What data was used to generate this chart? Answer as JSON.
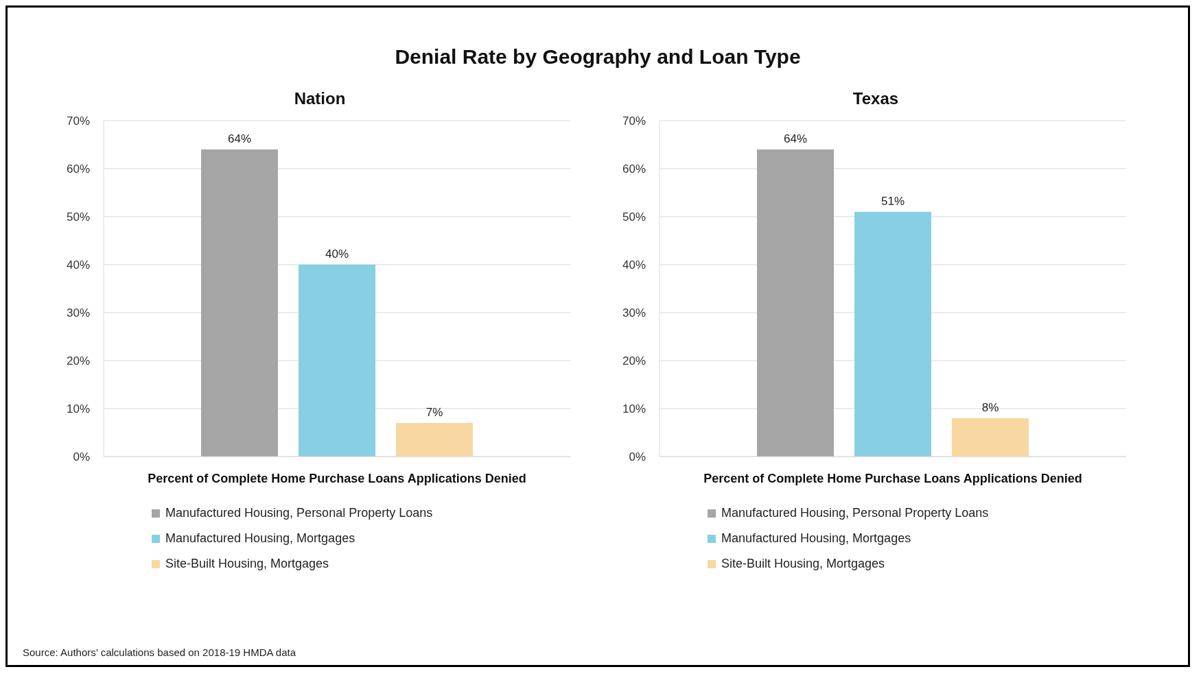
{
  "chart_data": [
    {
      "type": "bar",
      "title": "Nation",
      "xlabel": "Percent of Complete Home Purchase Loans Applications Denied",
      "categories": [
        null
      ],
      "series": [
        {
          "name": "Manufactured Housing, Personal Property Loans",
          "color": "#a5a5a5",
          "values": [
            64
          ],
          "value_labels": [
            "64%"
          ]
        },
        {
          "name": "Manufactured Housing, Mortgages",
          "color": "#87cfe2",
          "values": [
            40
          ],
          "value_labels": [
            "40%"
          ]
        },
        {
          "name": "Site-Built Housing, Mortgages",
          "color": "#f8d8a0",
          "values": [
            7
          ],
          "value_labels": [
            "7%"
          ]
        }
      ],
      "ylim": [
        0,
        70
      ],
      "yticks": [
        {
          "value": 0,
          "label": "0%"
        },
        {
          "value": 10,
          "label": "10%"
        },
        {
          "value": 20,
          "label": "20%"
        },
        {
          "value": 30,
          "label": "30%"
        },
        {
          "value": 40,
          "label": "40%"
        },
        {
          "value": 50,
          "label": "50%"
        },
        {
          "value": 60,
          "label": "60%"
        },
        {
          "value": 70,
          "label": "70%"
        }
      ],
      "grid": "y",
      "legend": "bottom",
      "annotations": [
        "Denial Rate by Geography and Loan Type"
      ]
    },
    {
      "type": "bar",
      "title": "Texas",
      "xlabel": "Percent of Complete Home Purchase Loans Applications Denied",
      "categories": [
        null
      ],
      "series": [
        {
          "name": "Manufactured Housing, Personal Property Loans",
          "color": "#a5a5a5",
          "values": [
            64
          ],
          "value_labels": [
            "64%"
          ]
        },
        {
          "name": "Manufactured Housing, Mortgages",
          "color": "#87cfe2",
          "values": [
            51
          ],
          "value_labels": [
            "51%"
          ]
        },
        {
          "name": "Site-Built Housing, Mortgages",
          "color": "#f8d8a0",
          "values": [
            8
          ],
          "value_labels": [
            "8%"
          ]
        }
      ],
      "ylim": [
        0,
        70
      ],
      "yticks": [
        {
          "value": 0,
          "label": "0%"
        },
        {
          "value": 10,
          "label": "10%"
        },
        {
          "value": 20,
          "label": "20%"
        },
        {
          "value": 30,
          "label": "30%"
        },
        {
          "value": 40,
          "label": "40%"
        },
        {
          "value": 50,
          "label": "50%"
        },
        {
          "value": 60,
          "label": "60%"
        },
        {
          "value": 70,
          "label": "70%"
        }
      ],
      "grid": "y",
      "legend": "bottom",
      "annotations": [
        "Source: Authors’ calculations based on 2018-19 HMDA data"
      ]
    }
  ]
}
